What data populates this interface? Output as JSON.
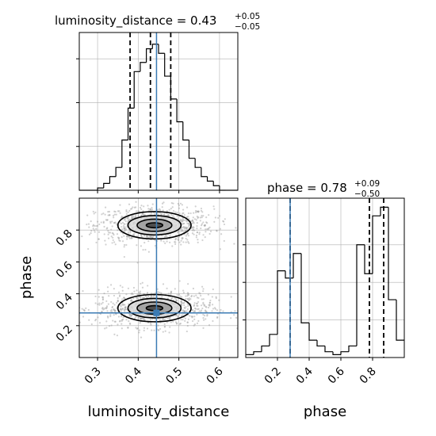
{
  "chart_data": {
    "type": "corner",
    "parameters": [
      "luminosity_distance",
      "phase"
    ],
    "truth": {
      "luminosity_distance": 0.445,
      "phase": 0.28
    },
    "panels": [
      {
        "id": "luminosity_distance_hist",
        "type": "histogram",
        "title_main": "luminosity_distance = 0.43",
        "title_sup": "+0.05",
        "title_sub": "−0.05",
        "xlim": [
          0.255,
          0.645
        ],
        "bin_edges": [
          0.255,
          0.27,
          0.285,
          0.3,
          0.315,
          0.33,
          0.345,
          0.36,
          0.375,
          0.39,
          0.405,
          0.42,
          0.435,
          0.45,
          0.465,
          0.48,
          0.495,
          0.51,
          0.525,
          0.54,
          0.555,
          0.57,
          0.585,
          0.6,
          0.615,
          0.63,
          0.645
        ],
        "counts": [
          0,
          0,
          0,
          1,
          3,
          6,
          10,
          22,
          36,
          52,
          56,
          62,
          64,
          60,
          50,
          40,
          30,
          22,
          14,
          10,
          6,
          4,
          2,
          0,
          0,
          0
        ],
        "quantiles": [
          0.38,
          0.43,
          0.48
        ]
      },
      {
        "id": "phase_hist",
        "type": "histogram",
        "title_main": "phase = 0.78",
        "title_sup": "+0.09",
        "title_sub": "−0.50",
        "xlim": [
          0.0,
          1.0
        ],
        "bin_edges": [
          0.0,
          0.05,
          0.1,
          0.15,
          0.2,
          0.25,
          0.3,
          0.35,
          0.4,
          0.45,
          0.5,
          0.55,
          0.6,
          0.65,
          0.7,
          0.75,
          0.8,
          0.85,
          0.9,
          0.95,
          1.0
        ],
        "counts": [
          2,
          4,
          8,
          16,
          60,
          55,
          72,
          24,
          12,
          8,
          4,
          2,
          4,
          8,
          78,
          58,
          98,
          104,
          40,
          12
        ],
        "quantiles": [
          0.28,
          0.78,
          0.87
        ]
      },
      {
        "id": "luminosity_distance_vs_phase",
        "type": "2d-density",
        "xlim": [
          0.255,
          0.645
        ],
        "ylim": [
          0.0,
          1.0
        ],
        "blobs": [
          {
            "x": 0.44,
            "y": 0.83,
            "sx": 0.045,
            "sy": 0.045
          },
          {
            "x": 0.44,
            "y": 0.31,
            "sx": 0.045,
            "sy": 0.045
          }
        ]
      }
    ],
    "axes": {
      "luminosity_distance": {
        "label": "luminosity_distance",
        "ticks": [
          0.3,
          0.4,
          0.5,
          0.6
        ],
        "tick_labels": [
          "0.3",
          "0.4",
          "0.5",
          "0.6"
        ]
      },
      "phase": {
        "label": "phase",
        "ticks": [
          0.2,
          0.4,
          0.6,
          0.8
        ],
        "tick_labels": [
          "0.2",
          "0.4",
          "0.6",
          "0.8"
        ]
      }
    },
    "grid": true,
    "colors": {
      "histogram": "#000000",
      "truth": "#3b7bb4",
      "contour": "#000000",
      "grid": "#b0b0b0"
    }
  }
}
